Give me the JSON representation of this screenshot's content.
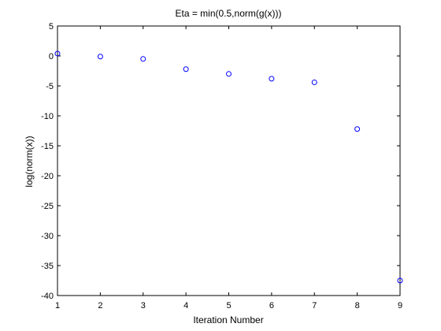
{
  "chart_data": {
    "type": "scatter",
    "title": "Eta = min(0.5,norm(g(x)))",
    "xlabel": "Iteration Number",
    "ylabel": "log(norm(x))",
    "xlim": [
      1,
      9
    ],
    "ylim": [
      -40,
      5
    ],
    "xticks": [
      1,
      2,
      3,
      4,
      5,
      6,
      7,
      8,
      9
    ],
    "yticks": [
      5,
      0,
      -5,
      -10,
      -15,
      -20,
      -25,
      -30,
      -35,
      -40
    ],
    "grid": false,
    "marker": "open-circle",
    "marker_color": "#0000ff",
    "series": [
      {
        "x": [
          1,
          2,
          3,
          4,
          5,
          6,
          7,
          8,
          9
        ],
        "y": [
          0.4,
          -0.1,
          -0.5,
          -2.2,
          -3.0,
          -3.8,
          -4.4,
          -12.2,
          -37.5
        ]
      }
    ]
  }
}
